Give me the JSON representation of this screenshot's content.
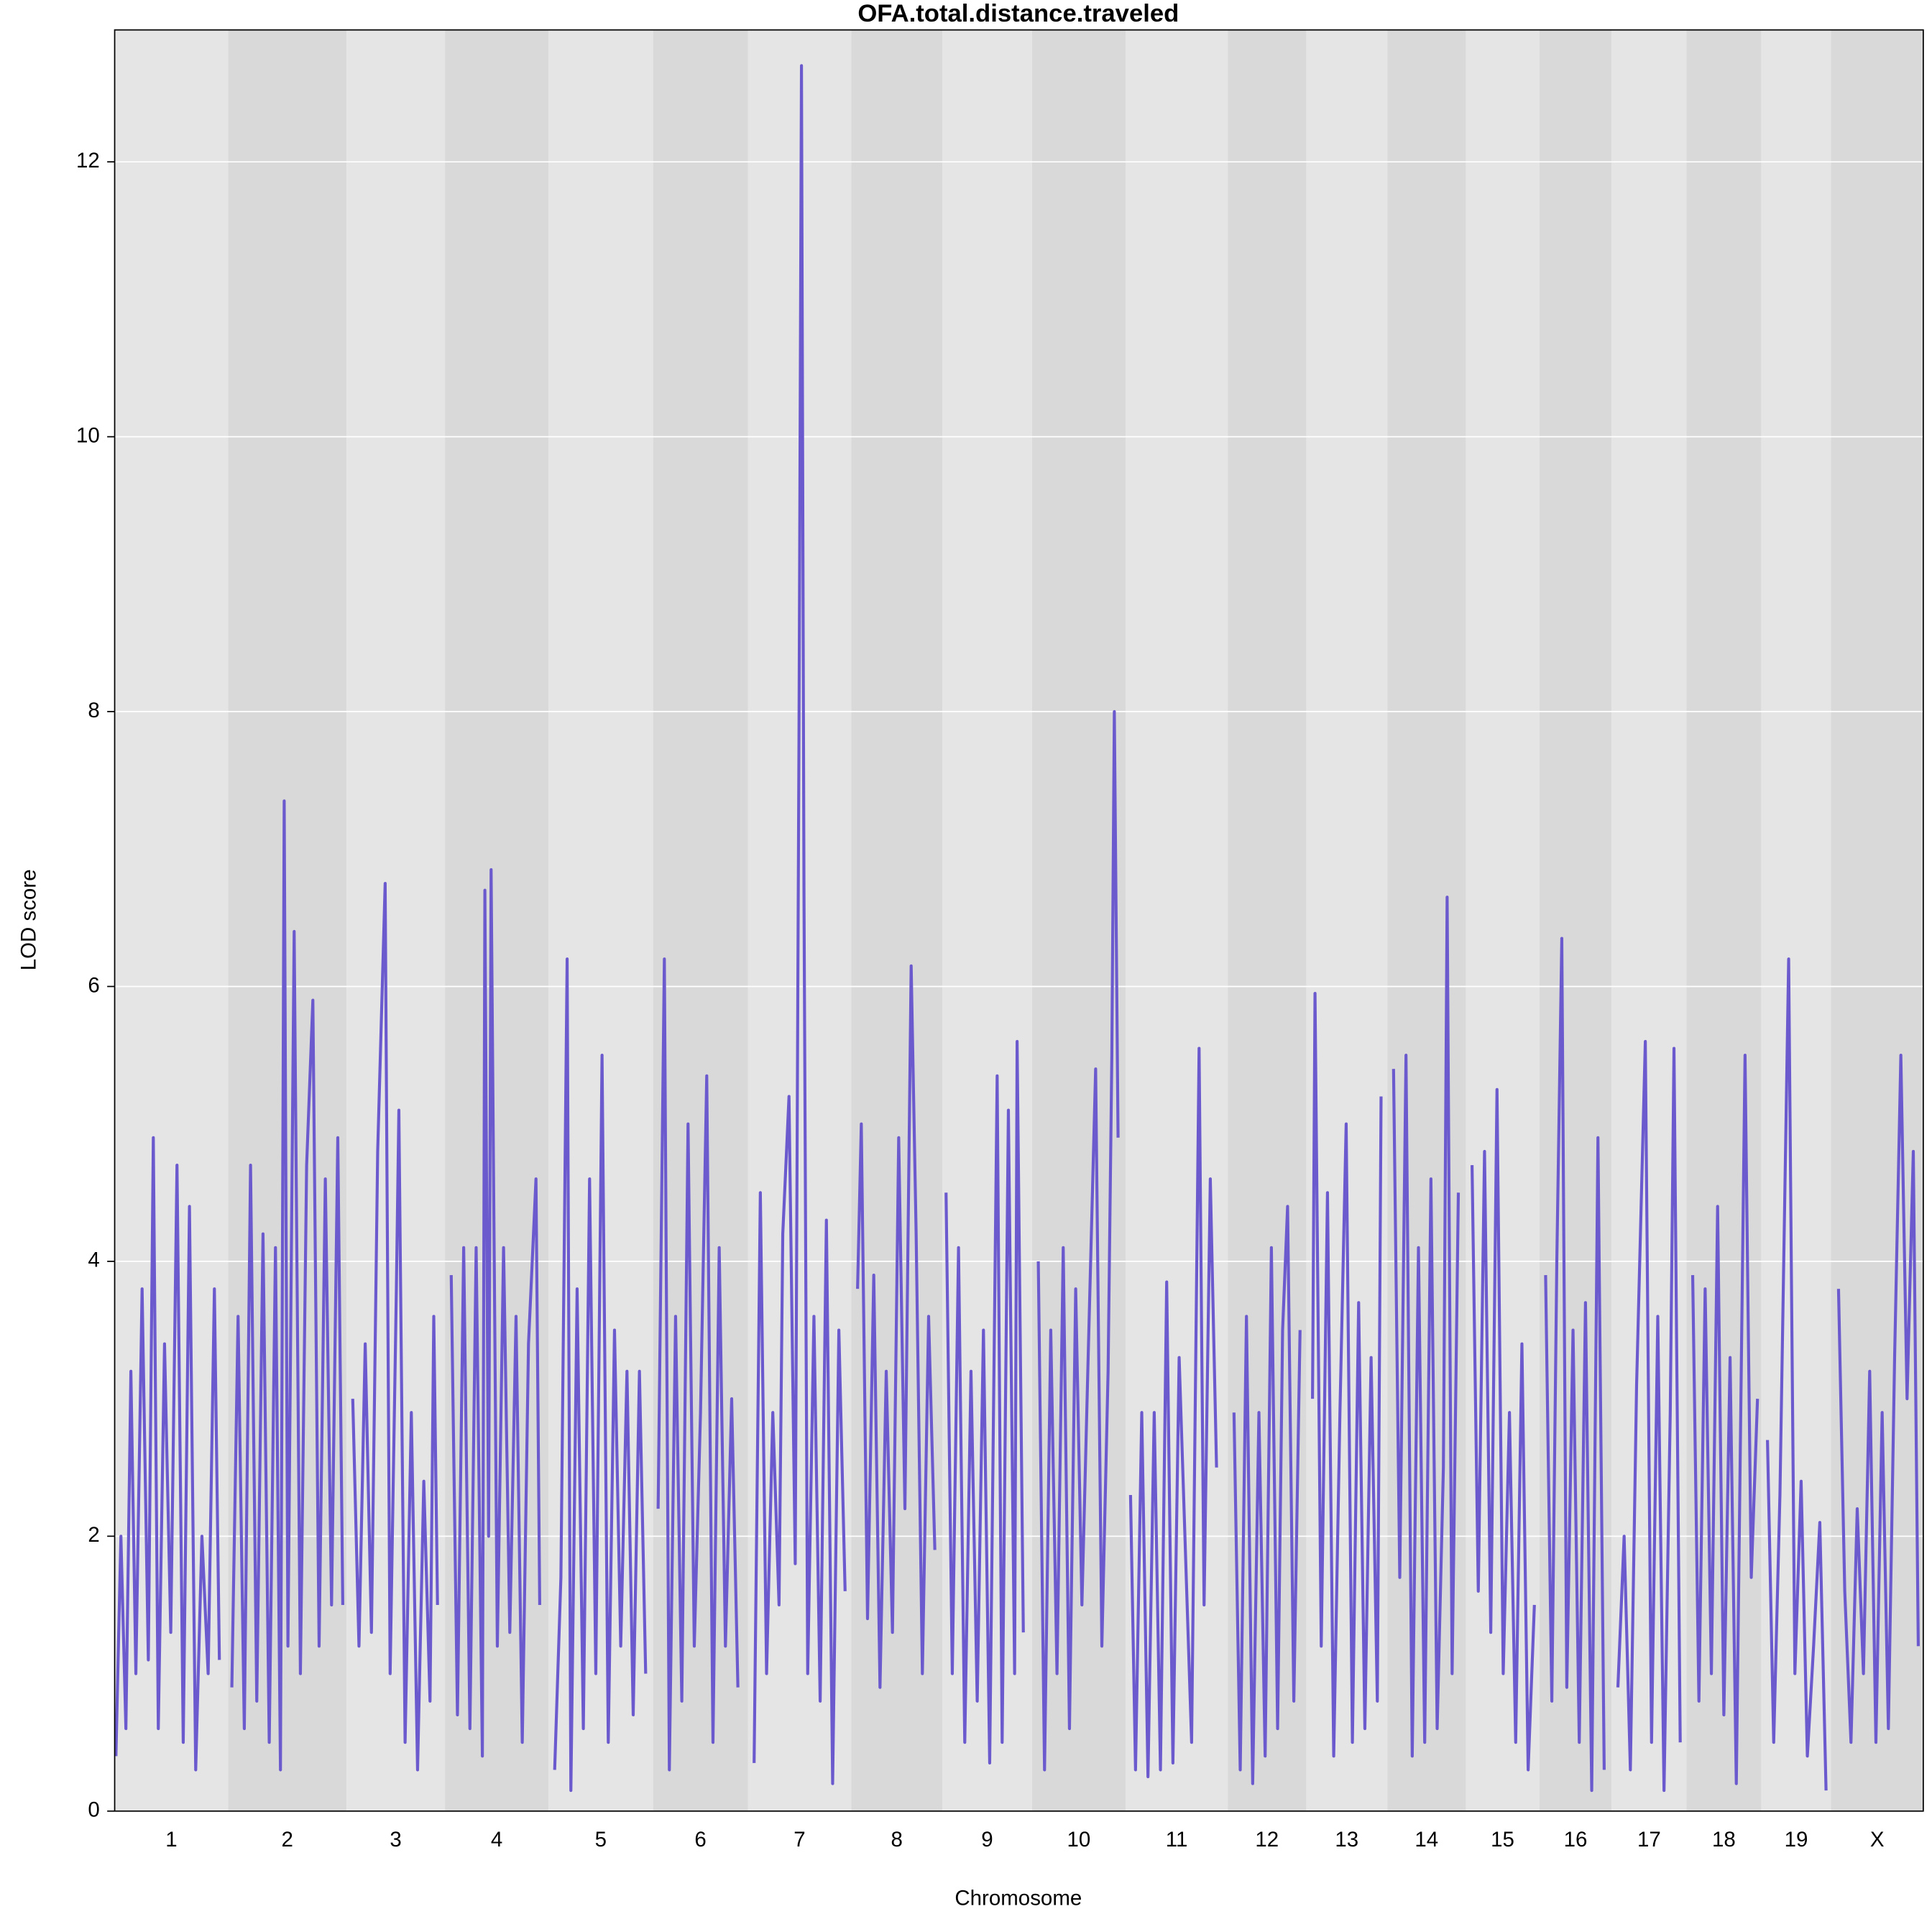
{
  "chart_data": {
    "type": "line",
    "title": "OFA.total.distance.traveled",
    "xlabel": "Chromosome",
    "ylabel": "LOD score",
    "ylim": [
      0,
      12.96
    ],
    "yticks": [
      0,
      2,
      4,
      6,
      8,
      10,
      12
    ],
    "grid": true,
    "color": "#6a5acd",
    "band_colors": [
      "#e5e5e5",
      "#d9d9d9"
    ],
    "chromosomes": [
      {
        "name": "1",
        "length": 91,
        "x": [
          1,
          5,
          9,
          13,
          17,
          22,
          27,
          31,
          35,
          40,
          45,
          50,
          55,
          60,
          65,
          70,
          75,
          80,
          84
        ],
        "values": [
          0.4,
          2.0,
          0.6,
          3.2,
          1.0,
          3.8,
          1.1,
          4.9,
          0.6,
          3.4,
          1.3,
          4.7,
          0.5,
          4.4,
          0.3,
          2.0,
          1.0,
          3.8,
          1.1
        ]
      },
      {
        "name": "2",
        "length": 95,
        "x": [
          3,
          8,
          13,
          18,
          23,
          28,
          33,
          38,
          42,
          45,
          48,
          53,
          58,
          63,
          68,
          73,
          78,
          83,
          88,
          92
        ],
        "values": [
          0.9,
          3.6,
          0.6,
          4.7,
          0.8,
          4.2,
          0.5,
          4.1,
          0.3,
          7.35,
          1.2,
          6.4,
          1.0,
          4.7,
          5.9,
          1.2,
          4.6,
          1.5,
          4.9,
          1.5
        ]
      },
      {
        "name": "3",
        "length": 79,
        "x": [
          5,
          10,
          15,
          20,
          25,
          31,
          35,
          40,
          42,
          47,
          52,
          57,
          62,
          67,
          70,
          73
        ],
        "values": [
          3.0,
          1.2,
          3.4,
          1.3,
          4.8,
          6.75,
          1.0,
          3.8,
          5.1,
          0.5,
          2.9,
          0.3,
          2.4,
          0.8,
          3.6,
          1.5
        ]
      },
      {
        "name": "4",
        "length": 83,
        "x": [
          5,
          10,
          15,
          20,
          25,
          30,
          32,
          35,
          37,
          42,
          47,
          52,
          57,
          62,
          67,
          73,
          76
        ],
        "values": [
          3.9,
          0.7,
          4.1,
          0.6,
          4.1,
          0.4,
          6.7,
          2.0,
          6.85,
          1.2,
          4.1,
          1.3,
          3.6,
          0.5,
          3.4,
          4.6,
          1.5
        ]
      },
      {
        "name": "5",
        "length": 84,
        "x": [
          5,
          10,
          15,
          18,
          23,
          28,
          33,
          38,
          43,
          48,
          53,
          58,
          63,
          68,
          73,
          78
        ],
        "values": [
          0.3,
          1.7,
          6.2,
          0.15,
          3.8,
          0.6,
          4.6,
          1.0,
          5.5,
          0.5,
          3.5,
          1.2,
          3.2,
          0.7,
          3.2,
          1.0
        ]
      },
      {
        "name": "6",
        "length": 76,
        "x": [
          4,
          9,
          13,
          18,
          23,
          28,
          33,
          38,
          43,
          48,
          53,
          58,
          63,
          68
        ],
        "values": [
          2.2,
          6.2,
          0.3,
          3.6,
          0.8,
          5.0,
          1.2,
          2.9,
          5.35,
          0.5,
          4.1,
          1.2,
          3.0,
          0.9
        ]
      },
      {
        "name": "7",
        "length": 83,
        "x": [
          5,
          10,
          15,
          20,
          25,
          28,
          33,
          38,
          41,
          43,
          45,
          48,
          53,
          58,
          63,
          68,
          73,
          78
        ],
        "values": [
          0.35,
          4.5,
          1.0,
          2.9,
          1.5,
          4.2,
          5.2,
          1.8,
          7.8,
          12.7,
          6.7,
          1.0,
          3.6,
          0.8,
          4.3,
          0.2,
          3.5,
          1.6
        ]
      },
      {
        "name": "8",
        "length": 73,
        "x": [
          5,
          8,
          13,
          18,
          23,
          28,
          33,
          38,
          43,
          48,
          52,
          57,
          62,
          67
        ],
        "values": [
          3.8,
          5.0,
          1.4,
          3.9,
          0.9,
          3.2,
          1.3,
          4.9,
          2.2,
          6.15,
          4.2,
          1.0,
          3.6,
          1.9
        ]
      },
      {
        "name": "9",
        "length": 72,
        "x": [
          3,
          8,
          13,
          18,
          23,
          28,
          33,
          38,
          44,
          48,
          53,
          58,
          60,
          65
        ],
        "values": [
          4.5,
          1.0,
          4.1,
          0.5,
          3.2,
          0.8,
          3.5,
          0.35,
          5.35,
          0.5,
          5.1,
          1.0,
          5.6,
          1.3
        ]
      },
      {
        "name": "10",
        "length": 75,
        "x": [
          5,
          10,
          15,
          20,
          25,
          30,
          35,
          40,
          45,
          51,
          56,
          61,
          64,
          66,
          69
        ],
        "values": [
          4.0,
          0.3,
          3.5,
          1.0,
          4.1,
          0.6,
          3.8,
          1.5,
          3.3,
          5.4,
          1.2,
          3.2,
          5.5,
          8.0,
          4.9
        ]
      },
      {
        "name": "11",
        "length": 82,
        "x": [
          4,
          8,
          13,
          18,
          23,
          28,
          33,
          38,
          43,
          48,
          53,
          59,
          63,
          68,
          73
        ],
        "values": [
          2.3,
          0.3,
          2.9,
          0.25,
          2.9,
          0.3,
          3.85,
          0.35,
          3.3,
          1.9,
          0.5,
          5.55,
          1.5,
          4.6,
          2.5
        ]
      },
      {
        "name": "12",
        "length": 63,
        "x": [
          5,
          10,
          15,
          20,
          25,
          30,
          35,
          40,
          44,
          48,
          53,
          58
        ],
        "values": [
          2.9,
          0.3,
          3.6,
          0.2,
          2.9,
          0.4,
          4.1,
          0.6,
          3.5,
          4.4,
          0.8,
          3.5
        ]
      },
      {
        "name": "13",
        "length": 65,
        "x": [
          5,
          7,
          12,
          17,
          22,
          27,
          32,
          37,
          42,
          47,
          52,
          57,
          60
        ],
        "values": [
          3.0,
          5.95,
          1.2,
          4.5,
          0.4,
          2.9,
          5.0,
          0.5,
          3.7,
          0.6,
          3.3,
          0.8,
          5.2
        ]
      },
      {
        "name": "14",
        "length": 63,
        "x": [
          5,
          10,
          15,
          20,
          25,
          30,
          35,
          40,
          45,
          48,
          52,
          57
        ],
        "values": [
          5.4,
          1.7,
          5.5,
          0.4,
          4.1,
          0.5,
          4.6,
          0.6,
          2.5,
          6.65,
          1.0,
          4.5
        ]
      },
      {
        "name": "15",
        "length": 59,
        "x": [
          5,
          10,
          15,
          20,
          25,
          30,
          35,
          40,
          45,
          50,
          55
        ],
        "values": [
          4.7,
          1.6,
          4.8,
          1.3,
          5.25,
          1.0,
          2.9,
          0.5,
          3.4,
          0.3,
          1.5
        ]
      },
      {
        "name": "16",
        "length": 58,
        "x": [
          5,
          10,
          14,
          18,
          22,
          27,
          32,
          37,
          42,
          47,
          52
        ],
        "values": [
          3.9,
          0.8,
          4.0,
          6.35,
          0.9,
          3.5,
          0.5,
          3.7,
          0.15,
          4.9,
          0.3
        ]
      },
      {
        "name": "17",
        "length": 60,
        "x": [
          5,
          10,
          15,
          20,
          27,
          32,
          37,
          42,
          47,
          50,
          55
        ],
        "values": [
          0.9,
          2.0,
          0.3,
          3.1,
          5.6,
          0.5,
          3.6,
          0.15,
          2.9,
          5.55,
          0.5
        ]
      },
      {
        "name": "18",
        "length": 60,
        "x": [
          5,
          10,
          15,
          20,
          25,
          30,
          35,
          40,
          47,
          52,
          57
        ],
        "values": [
          3.9,
          0.8,
          3.8,
          1.0,
          4.4,
          0.7,
          3.3,
          0.2,
          5.5,
          1.7,
          3.0
        ]
      },
      {
        "name": "19",
        "length": 56,
        "x": [
          5,
          10,
          15,
          22,
          27,
          32,
          37,
          42,
          47,
          52
        ],
        "values": [
          2.7,
          0.5,
          2.3,
          6.2,
          1.0,
          2.4,
          0.4,
          1.2,
          2.1,
          0.15
        ]
      },
      {
        "name": "X",
        "length": 74,
        "x": [
          6,
          11,
          16,
          21,
          26,
          31,
          36,
          41,
          46,
          51,
          56,
          61,
          66,
          70
        ],
        "values": [
          3.8,
          1.6,
          0.5,
          2.2,
          1.0,
          3.2,
          0.5,
          2.9,
          0.6,
          3.3,
          5.5,
          3.0,
          4.8,
          1.2
        ]
      }
    ]
  }
}
